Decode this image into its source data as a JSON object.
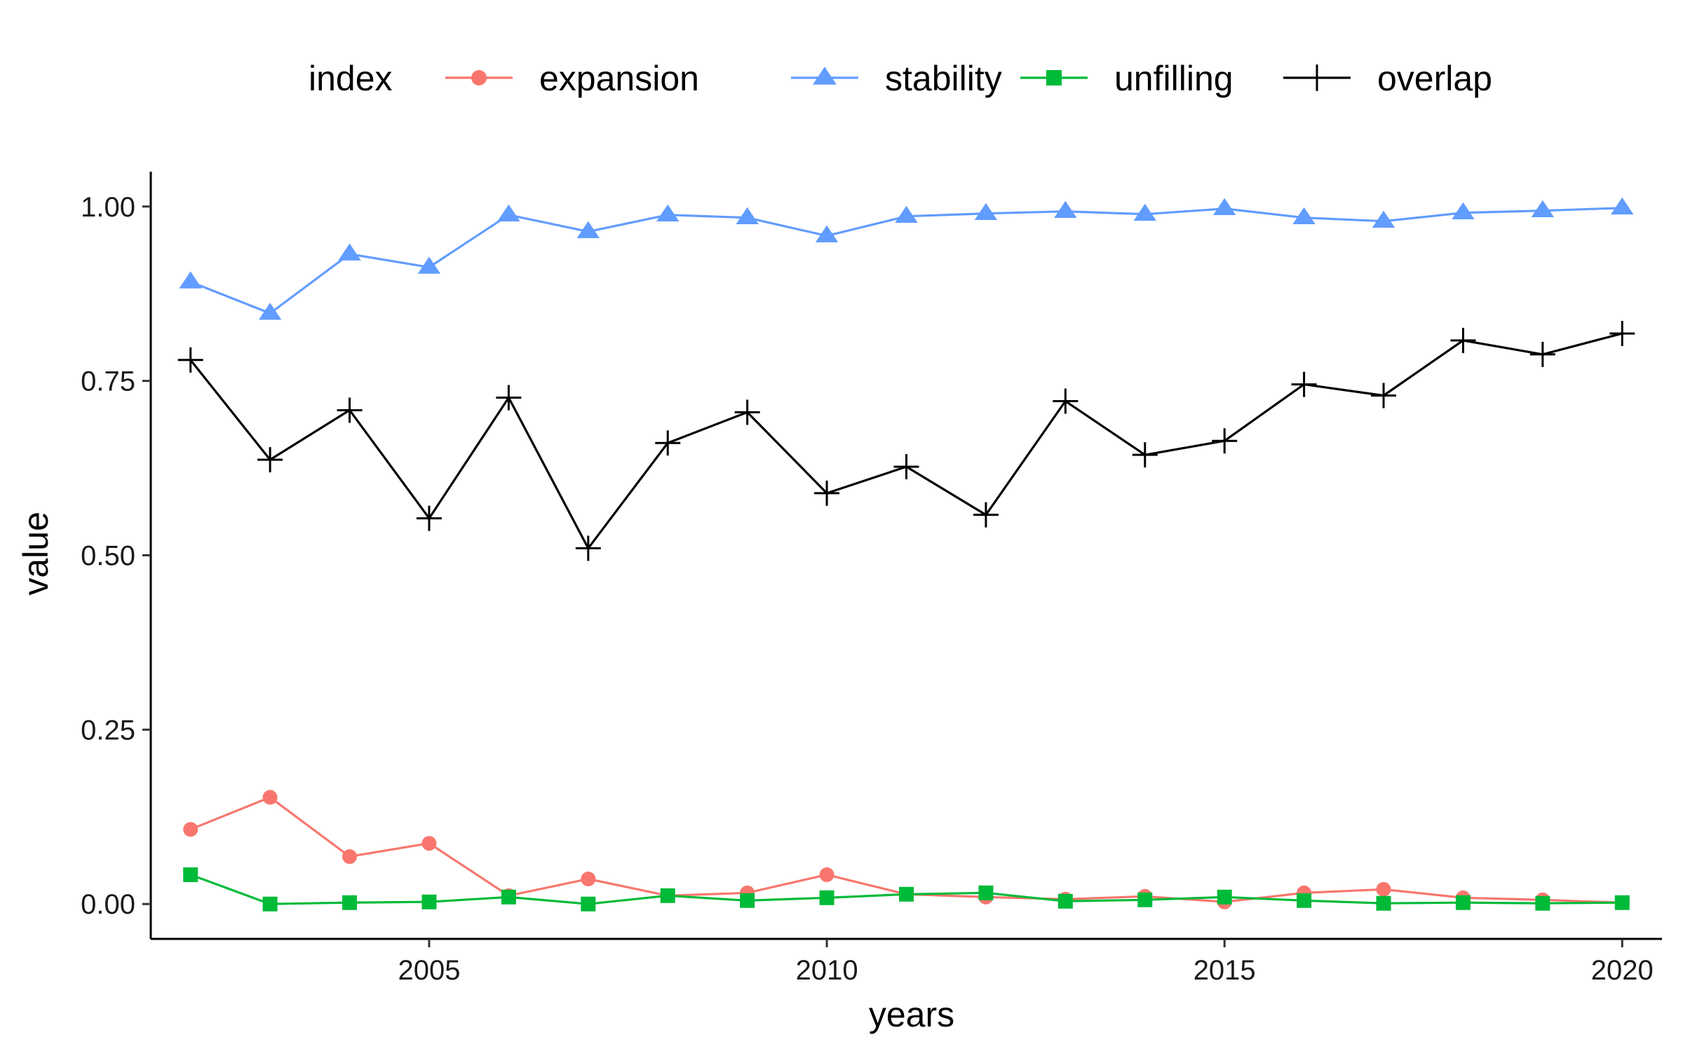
{
  "chart_data": {
    "type": "line",
    "title": "",
    "xlabel": "years",
    "ylabel": "value",
    "xlim": [
      2001.5,
      2020.5
    ],
    "ylim": [
      -0.05,
      1.05
    ],
    "x_ticks": [
      2005,
      2010,
      2015,
      2020
    ],
    "x_tick_labels": [
      "2005",
      "2010",
      "2015",
      "2020"
    ],
    "y_ticks": [
      0,
      0.25,
      0.5,
      0.75,
      1.0
    ],
    "y_tick_labels": [
      "0.00",
      "0.25",
      "0.50",
      "0.75",
      "1.00"
    ],
    "grid": false,
    "legend": {
      "title": "index",
      "position": "top"
    },
    "x": [
      2002,
      2003,
      2004,
      2005,
      2006,
      2007,
      2008,
      2009,
      2010,
      2011,
      2012,
      2013,
      2014,
      2015,
      2016,
      2017,
      2018,
      2019,
      2020
    ],
    "series": [
      {
        "name": "expansion",
        "color": "#F8766D",
        "marker": "circle",
        "values": [
          0.107,
          0.153,
          0.068,
          0.087,
          0.012,
          0.036,
          0.012,
          0.016,
          0.042,
          0.014,
          0.01,
          0.007,
          0.011,
          0.003,
          0.016,
          0.021,
          0.009,
          0.006,
          0.002
        ]
      },
      {
        "name": "stability",
        "color": "#619CFF",
        "marker": "triangle",
        "values": [
          0.892,
          0.847,
          0.932,
          0.913,
          0.988,
          0.964,
          0.988,
          0.984,
          0.958,
          0.986,
          0.99,
          0.993,
          0.989,
          0.997,
          0.984,
          0.979,
          0.991,
          0.994,
          0.998
        ]
      },
      {
        "name": "unfilling",
        "color": "#00BA38",
        "marker": "square",
        "values": [
          0.042,
          0.0,
          0.002,
          0.003,
          0.01,
          0.0,
          0.012,
          0.005,
          0.009,
          0.014,
          0.016,
          0.004,
          0.006,
          0.01,
          0.005,
          0.001,
          0.002,
          0.001,
          0.002
        ]
      },
      {
        "name": "overlap",
        "color": "#000000",
        "marker": "plus",
        "values": [
          0.78,
          0.637,
          0.708,
          0.553,
          0.726,
          0.51,
          0.661,
          0.705,
          0.589,
          0.627,
          0.558,
          0.721,
          0.644,
          0.664,
          0.745,
          0.729,
          0.808,
          0.788,
          0.818
        ]
      }
    ]
  }
}
